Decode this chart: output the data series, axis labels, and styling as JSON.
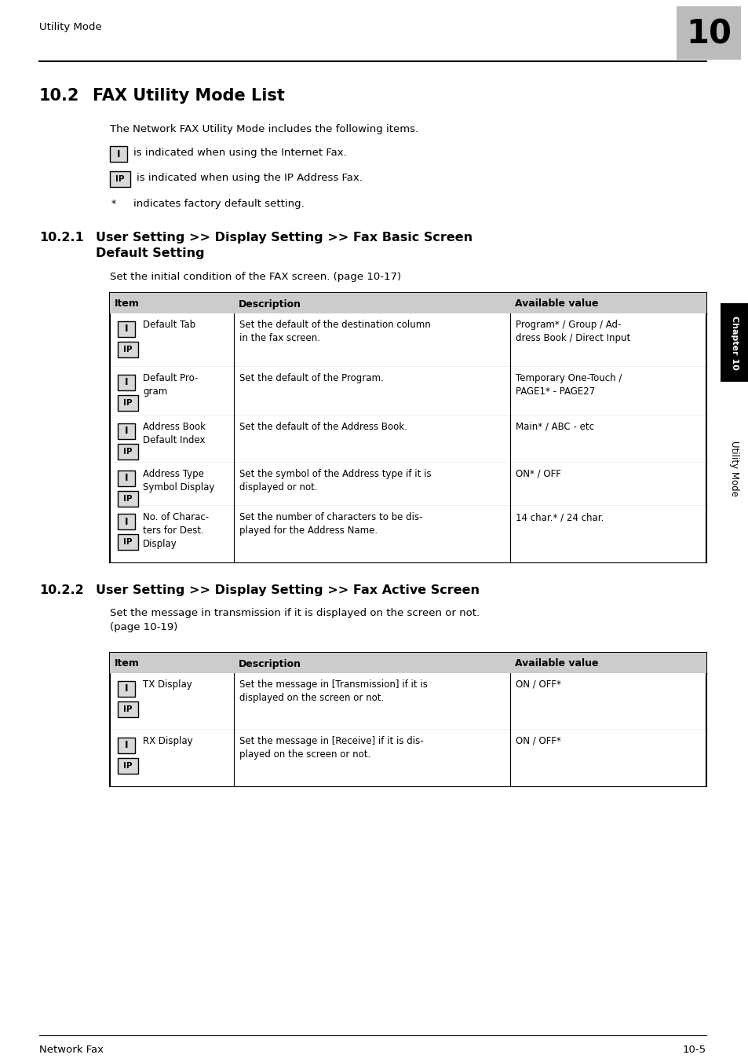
{
  "page_header_text": "Utility Mode",
  "page_number": "10",
  "section_title_num": "10.2",
  "section_title_rest": "FAX Utility Mode List",
  "intro_text": "The Network FAX Utility Mode includes the following items.",
  "bullet_I_text": "is indicated when using the Internet Fax.",
  "bullet_IP_text": "is indicated when using the IP Address Fax.",
  "bullet_star_text": "indicates factory default setting.",
  "subsec1_num": "10.2.1",
  "subsec1_rest": "User Setting >> Display Setting >> Fax Basic Screen\nDefault Setting",
  "subsec1_desc": "Set the initial condition of the FAX screen. (page 10-17)",
  "table1_headers": [
    "Item",
    "Description",
    "Available value"
  ],
  "table1_rows": [
    {
      "icons": [
        "I",
        "IP"
      ],
      "item": "Default Tab",
      "description": "Set the default of the destination column\nin the fax screen.",
      "value": "Program* / Group / Ad-\ndress Book / Direct Input"
    },
    {
      "icons": [
        "I",
        "IP"
      ],
      "item": "Default Pro-\ngram",
      "description": "Set the default of the Program.",
      "value": "Temporary One-Touch /\nPAGE1* - PAGE27"
    },
    {
      "icons": [
        "I",
        "IP"
      ],
      "item": "Address Book\nDefault Index",
      "description": "Set the default of the Address Book.",
      "value": "Main* / ABC - etc"
    },
    {
      "icons": [
        "I",
        "IP"
      ],
      "item": "Address Type\nSymbol Display",
      "description": "Set the symbol of the Address type if it is\ndisplayed or not.",
      "value": "ON* / OFF"
    },
    {
      "icons": [
        "I",
        "IP"
      ],
      "item": "No. of Charac-\nters for Dest.\nDisplay",
      "description": "Set the number of characters to be dis-\nplayed for the Address Name.",
      "value": "14 char.* / 24 char."
    }
  ],
  "subsec2_num": "10.2.2",
  "subsec2_rest": "User Setting >> Display Setting >> Fax Active Screen",
  "subsec2_desc": "Set the message in transmission if it is displayed on the screen or not.\n(page 10-19)",
  "table2_headers": [
    "Item",
    "Description",
    "Available value"
  ],
  "table2_rows": [
    {
      "icons": [
        "I",
        "IP"
      ],
      "item": "TX Display",
      "description": "Set the message in [Transmission] if it is\ndisplayed on the screen or not.",
      "value": "ON / OFF*"
    },
    {
      "icons": [
        "I",
        "IP"
      ],
      "item": "RX Display",
      "description": "Set the message in [Receive] if it is dis-\nplayed on the screen or not.",
      "value": "ON / OFF*"
    }
  ],
  "footer_left": "Network Fax",
  "footer_right": "10-5",
  "bg_color": "#ffffff",
  "table_header_bg": "#cccccc",
  "chapter_tab_bg": "#000000",
  "chapter_tab_fg": "#ffffff",
  "number_box_bg": "#bbbbbb",
  "number_box_fg": "#000000"
}
